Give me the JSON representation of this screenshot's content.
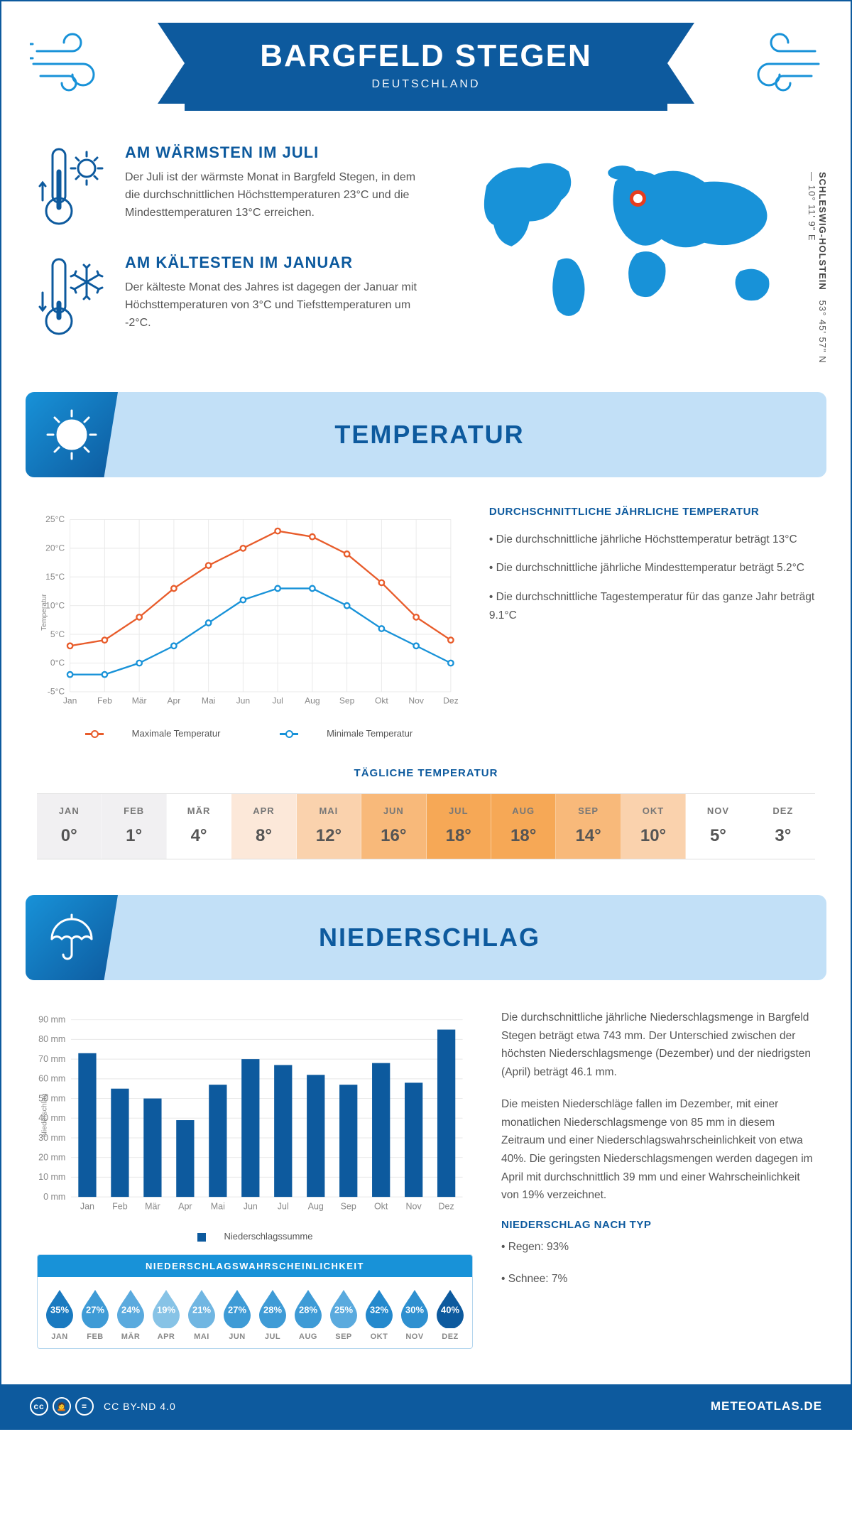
{
  "header": {
    "title": "BARGFELD STEGEN",
    "subtitle": "DEUTSCHLAND"
  },
  "location": {
    "coords": "53° 45' 57\" N — 10° 11' 9\" E",
    "region": "SCHLESWIG-HOLSTEIN",
    "marker_color": "#e63e1f"
  },
  "colors": {
    "primary": "#0d5a9e",
    "accent": "#1892d8",
    "light": "#c2e0f7",
    "max_line": "#e85c2b",
    "min_line": "#1892d8",
    "bar": "#0d5a9e",
    "grid": "#e8e8e8",
    "text_muted": "#888"
  },
  "facts": {
    "warm": {
      "title": "AM WÄRMSTEN IM JULI",
      "text": "Der Juli ist der wärmste Monat in Bargfeld Stegen, in dem die durchschnittlichen Höchsttemperaturen 23°C und die Mindesttemperaturen 13°C erreichen."
    },
    "cold": {
      "title": "AM KÄLTESTEN IM JANUAR",
      "text": "Der kälteste Monat des Jahres ist dagegen der Januar mit Höchsttemperaturen von 3°C und Tiefsttemperaturen um -2°C."
    }
  },
  "sections": {
    "temp": "TEMPERATUR",
    "precip": "NIEDERSCHLAG"
  },
  "months": [
    "Jan",
    "Feb",
    "Mär",
    "Apr",
    "Mai",
    "Jun",
    "Jul",
    "Aug",
    "Sep",
    "Okt",
    "Nov",
    "Dez"
  ],
  "months_upper": [
    "JAN",
    "FEB",
    "MÄR",
    "APR",
    "MAI",
    "JUN",
    "JUL",
    "AUG",
    "SEP",
    "OKT",
    "NOV",
    "DEZ"
  ],
  "temp_chart": {
    "y_label": "Temperatur",
    "y_min": -5,
    "y_max": 25,
    "y_step": 5,
    "max_series": [
      3,
      4,
      8,
      13,
      17,
      20,
      23,
      22,
      19,
      14,
      8,
      4
    ],
    "min_series": [
      -2,
      -2,
      0,
      3,
      7,
      11,
      13,
      13,
      10,
      6,
      3,
      0
    ],
    "legend_max": "Maximale Temperatur",
    "legend_min": "Minimale Temperatur"
  },
  "temp_info": {
    "heading": "DURCHSCHNITTLICHE JÄHRLICHE TEMPERATUR",
    "b1": "• Die durchschnittliche jährliche Höchsttemperatur beträgt 13°C",
    "b2": "• Die durchschnittliche jährliche Mindesttemperatur beträgt 5.2°C",
    "b3": "• Die durchschnittliche Tagestemperatur für das ganze Jahr beträgt 9.1°C"
  },
  "daily_temp": {
    "heading": "TÄGLICHE TEMPERATUR",
    "values": [
      "0°",
      "1°",
      "4°",
      "8°",
      "12°",
      "16°",
      "18°",
      "18°",
      "14°",
      "10°",
      "5°",
      "3°"
    ],
    "heat": [
      "neg1",
      "neg1",
      "0",
      "1",
      "2",
      "3",
      "4",
      "4",
      "3",
      "2",
      "0",
      "0"
    ]
  },
  "precip_chart": {
    "y_label": "Niederschlag",
    "y_min": 0,
    "y_max": 90,
    "y_step": 10,
    "values": [
      73,
      55,
      50,
      39,
      57,
      70,
      67,
      62,
      57,
      68,
      58,
      85
    ],
    "legend": "Niederschlagssumme"
  },
  "precip_info": {
    "p1": "Die durchschnittliche jährliche Niederschlagsmenge in Bargfeld Stegen beträgt etwa 743 mm. Der Unterschied zwischen der höchsten Niederschlagsmenge (Dezember) und der niedrigsten (April) beträgt 46.1 mm.",
    "p2": "Die meisten Niederschläge fallen im Dezember, mit einer monatlichen Niederschlagsmenge von 85 mm in diesem Zeitraum und einer Niederschlagswahrscheinlichkeit von etwa 40%. Die geringsten Niederschlagsmengen werden dagegen im April mit durchschnittlich 39 mm und einer Wahrscheinlichkeit von 19% verzeichnet.",
    "type_heading": "NIEDERSCHLAG NACH TYP",
    "type_1": "• Regen: 93%",
    "type_2": "• Schnee: 7%"
  },
  "precip_prob": {
    "title": "NIEDERSCHLAGSWAHRSCHEINLICHKEIT",
    "values": [
      "35%",
      "27%",
      "24%",
      "19%",
      "21%",
      "27%",
      "28%",
      "28%",
      "25%",
      "32%",
      "30%",
      "40%"
    ],
    "colors": [
      "#1a7ac0",
      "#3e9bd6",
      "#5aaade",
      "#87c3e6",
      "#70b6e2",
      "#3e9bd6",
      "#3e9bd6",
      "#3e9bd6",
      "#5aaade",
      "#2489cd",
      "#2e90d0",
      "#0d5a9e"
    ]
  },
  "footer": {
    "license": "CC BY-ND 4.0",
    "site": "METEOATLAS.DE"
  }
}
